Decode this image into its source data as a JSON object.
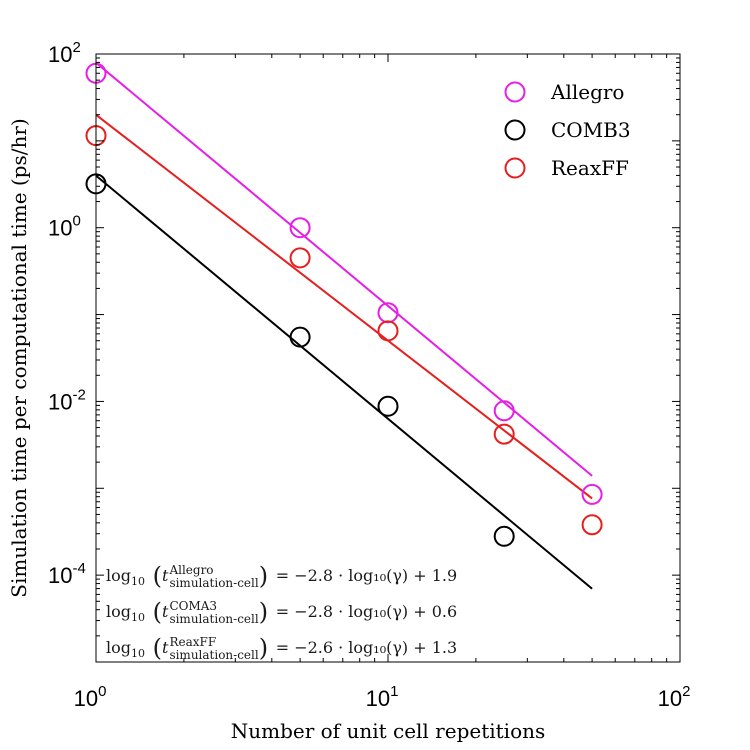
{
  "chart_data": {
    "type": "scatter",
    "xlabel": "Number of unit cell repetitions",
    "ylabel": "Simulation time per computational time (ps/hr)",
    "xscale": "log",
    "yscale": "log",
    "xlim": [
      1,
      100
    ],
    "ylim": [
      1e-05,
      100
    ],
    "x_ticks": [
      {
        "value": 1,
        "base": "10",
        "exp": "0"
      },
      {
        "value": 10,
        "base": "10",
        "exp": "1"
      },
      {
        "value": 100,
        "base": "10",
        "exp": "2"
      }
    ],
    "y_ticks": [
      {
        "value": 0.0001,
        "base": "10",
        "exp": "-4"
      },
      {
        "value": 0.01,
        "base": "10",
        "exp": "-2"
      },
      {
        "value": 1,
        "base": "10",
        "exp": "0"
      },
      {
        "value": 100,
        "base": "10",
        "exp": "2"
      }
    ],
    "legend_position": "top-right",
    "series": [
      {
        "name": "Allegro",
        "color": "#e61ee6",
        "points": [
          {
            "x": 1,
            "y": 60
          },
          {
            "x": 5,
            "y": 1.0
          },
          {
            "x": 10,
            "y": 0.105
          },
          {
            "x": 25,
            "y": 0.0078
          },
          {
            "x": 50,
            "y": 0.00085
          }
        ],
        "fit": {
          "slope": -2.8,
          "intercept": 1.9,
          "x_range": [
            1,
            50
          ]
        }
      },
      {
        "name": "COMB3",
        "color": "#000000",
        "points": [
          {
            "x": 1,
            "y": 3.2
          },
          {
            "x": 5,
            "y": 0.055
          },
          {
            "x": 10,
            "y": 0.0088
          },
          {
            "x": 25,
            "y": 0.00028
          }
        ],
        "fit": {
          "slope": -2.8,
          "intercept": 0.6,
          "x_range": [
            1,
            50
          ]
        }
      },
      {
        "name": "ReaxFF",
        "color": "#e61e1e",
        "points": [
          {
            "x": 1,
            "y": 11.5
          },
          {
            "x": 5,
            "y": 0.45
          },
          {
            "x": 10,
            "y": 0.065
          },
          {
            "x": 25,
            "y": 0.0042
          },
          {
            "x": 50,
            "y": 0.00038
          }
        ],
        "fit": {
          "slope": -2.6,
          "intercept": 1.3,
          "x_range": [
            1,
            50
          ]
        }
      }
    ],
    "annotations": [
      {
        "sup": "Allegro",
        "rhs": "= −2.8 · log₁₀(γ) + 1.9"
      },
      {
        "sup": "COMA3",
        "rhs": "= −2.8 · log₁₀(γ) + 0.6"
      },
      {
        "sup": "ReaxFF",
        "rhs": "= −2.6 · log₁₀(γ) + 1.3"
      }
    ],
    "annotation_lhs": {
      "log": "log",
      "base": "10",
      "var": "t",
      "sub": "simulation-cell"
    }
  }
}
